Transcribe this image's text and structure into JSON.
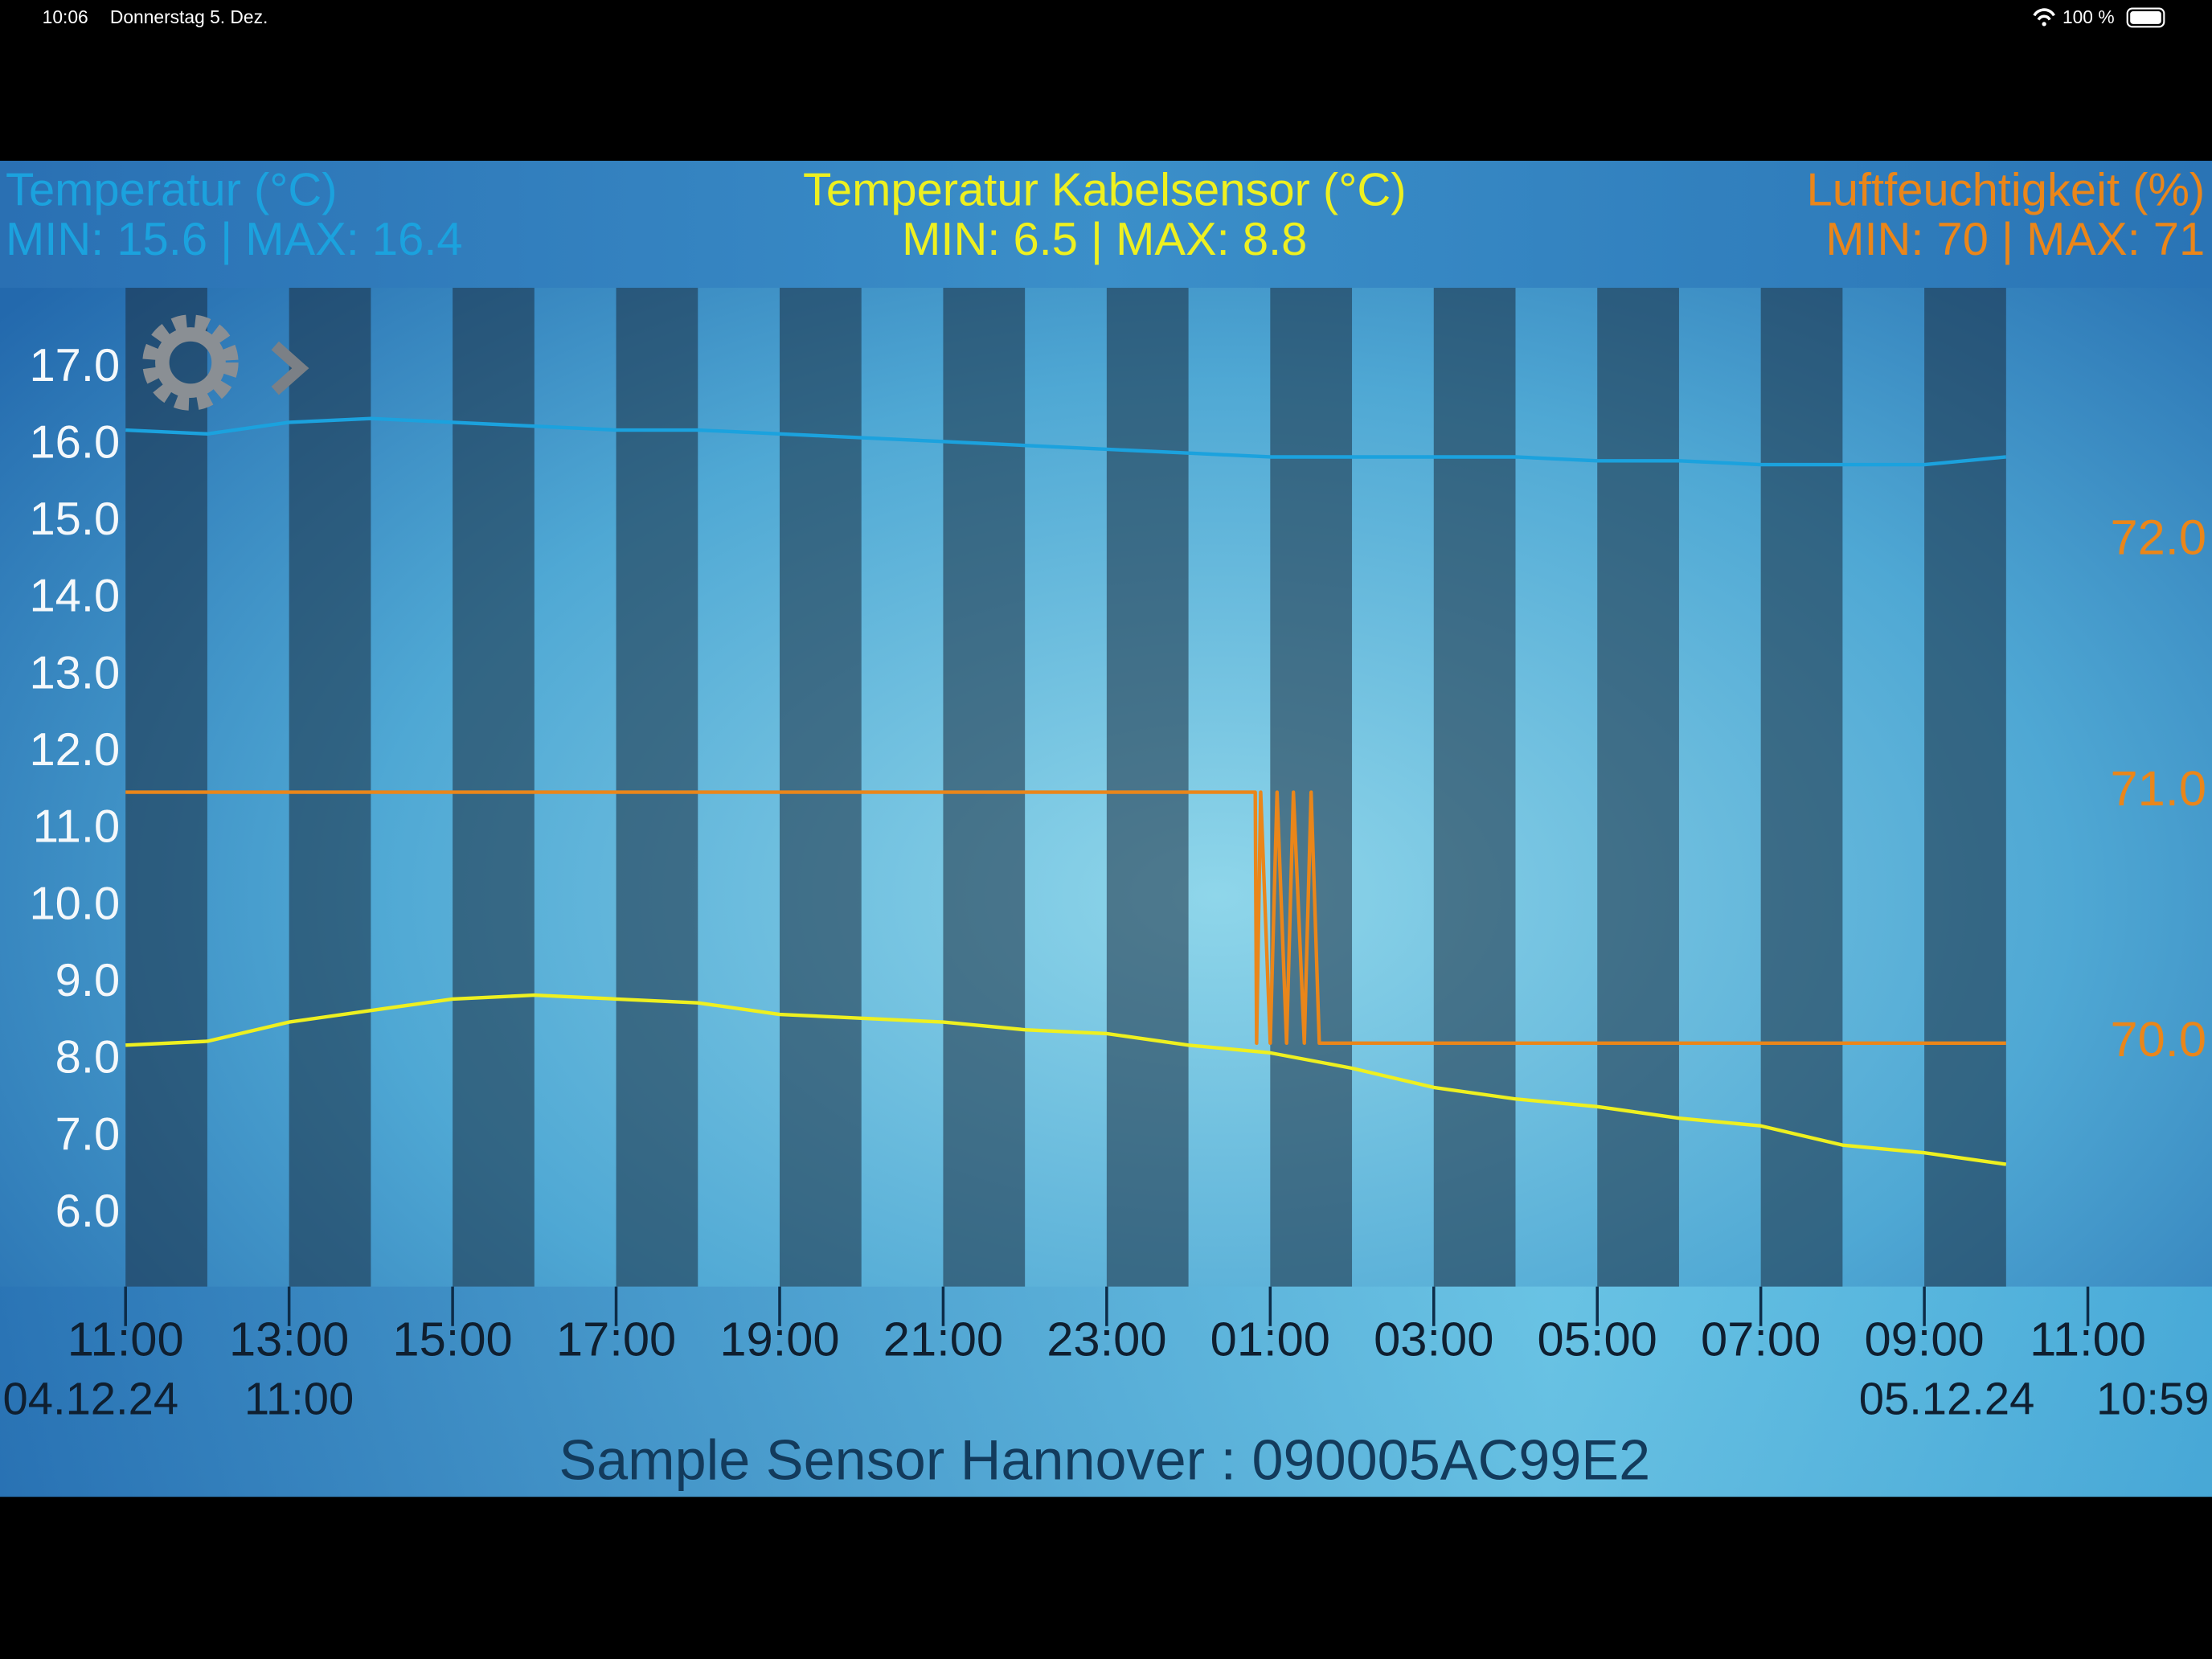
{
  "status_bar": {
    "time": "10:06",
    "date": "Donnerstag 5. Dez.",
    "battery": "100 %"
  },
  "sensor_label": "Sample Sensor Hannover : 090005AC99E2",
  "chart_data": {
    "type": "line",
    "xlim": [
      "04.12.24 11:00",
      "05.12.24 11:00"
    ],
    "xticks": [
      {
        "value": "04.12.24 11:00",
        "label": "11:00"
      },
      {
        "value": "04.12.24 13:00",
        "label": "13:00"
      },
      {
        "value": "04.12.24 15:00",
        "label": "15:00"
      },
      {
        "value": "04.12.24 17:00",
        "label": "17:00"
      },
      {
        "value": "04.12.24 19:00",
        "label": "19:00"
      },
      {
        "value": "04.12.24 21:00",
        "label": "21:00"
      },
      {
        "value": "04.12.24 23:00",
        "label": "23:00"
      },
      {
        "value": "05.12.24 01:00",
        "label": "01:00"
      },
      {
        "value": "05.12.24 03:00",
        "label": "03:00"
      },
      {
        "value": "05.12.24 05:00",
        "label": "05:00"
      },
      {
        "value": "05.12.24 07:00",
        "label": "07:00"
      },
      {
        "value": "05.12.24 09:00",
        "label": "09:00"
      },
      {
        "value": "05.12.24 11:00",
        "label": "11:00"
      }
    ],
    "range_start": {
      "date": "04.12.24",
      "time": "11:00"
    },
    "range_end": {
      "date": "05.12.24",
      "time": "10:59"
    },
    "ylim": [
      5.06,
      18.05
    ],
    "yticks": [
      {
        "value": 6,
        "label": "6.0"
      },
      {
        "value": 7,
        "label": "7.0"
      },
      {
        "value": 8,
        "label": "8.0"
      },
      {
        "value": 9,
        "label": "9.0"
      },
      {
        "value": 10,
        "label": "10.0"
      },
      {
        "value": 11,
        "label": "11.0"
      },
      {
        "value": 12,
        "label": "12.0"
      },
      {
        "value": 13,
        "label": "13.0"
      },
      {
        "value": 14,
        "label": "14.0"
      },
      {
        "value": 15,
        "label": "15.0"
      },
      {
        "value": 16,
        "label": "16.0"
      },
      {
        "value": 17,
        "label": "17.0"
      }
    ],
    "y2lim": [
      69.03,
      73.01
    ],
    "y2ticks": [
      {
        "value": 70,
        "label": "70.0"
      },
      {
        "value": 71,
        "label": "71.0"
      },
      {
        "value": 72,
        "label": "72.0"
      }
    ],
    "series": [
      {
        "name": "Temperatur (°C)",
        "min_max_label": "MIN: 15.6 | MAX: 16.4",
        "color": "#1ba2de",
        "x": [
          "04.12.24 11:00",
          "04.12.24 12:00",
          "04.12.24 13:00",
          "04.12.24 14:00",
          "04.12.24 15:00",
          "04.12.24 16:00",
          "04.12.24 17:00",
          "04.12.24 18:00",
          "04.12.24 19:00",
          "04.12.24 20:00",
          "04.12.24 21:00",
          "04.12.24 22:00",
          "04.12.24 23:00",
          "05.12.24 00:00",
          "05.12.24 01:00",
          "05.12.24 02:00",
          "05.12.24 03:00",
          "05.12.24 04:00",
          "05.12.24 05:00",
          "05.12.24 06:00",
          "05.12.24 07:00",
          "05.12.24 08:00",
          "05.12.24 09:00",
          "05.12.24 10:00"
        ],
        "values": [
          16.2,
          16.15,
          16.3,
          16.35,
          16.3,
          16.25,
          16.2,
          16.2,
          16.15,
          16.1,
          16.05,
          16.0,
          15.95,
          15.9,
          15.85,
          15.85,
          15.85,
          15.85,
          15.8,
          15.8,
          15.75,
          15.75,
          15.75,
          15.85
        ]
      },
      {
        "name": "Temperatur Kabelsensor (°C)",
        "min_max_label": "MIN: 6.5 | MAX: 8.8",
        "color": "#eef020",
        "x": [
          "04.12.24 11:00",
          "04.12.24 12:00",
          "04.12.24 13:00",
          "04.12.24 14:00",
          "04.12.24 15:00",
          "04.12.24 16:00",
          "04.12.24 17:00",
          "04.12.24 18:00",
          "04.12.24 19:00",
          "04.12.24 20:00",
          "04.12.24 21:00",
          "04.12.24 22:00",
          "04.12.24 23:00",
          "05.12.24 00:00",
          "05.12.24 01:00",
          "05.12.24 02:00",
          "05.12.24 03:00",
          "05.12.24 04:00",
          "05.12.24 05:00",
          "05.12.24 06:00",
          "05.12.24 07:00",
          "05.12.24 08:00",
          "05.12.24 09:00",
          "05.12.24 10:00"
        ],
        "values": [
          8.2,
          8.25,
          8.5,
          8.65,
          8.8,
          8.85,
          8.8,
          8.75,
          8.6,
          8.55,
          8.5,
          8.4,
          8.35,
          8.2,
          8.1,
          7.9,
          7.65,
          7.5,
          7.4,
          7.25,
          7.15,
          6.9,
          6.8,
          6.65
        ]
      },
      {
        "name": "Luftfeuchtigkeit (%)",
        "min_max_label": "MIN: 70 | MAX: 71",
        "color": "#ea861a",
        "axis": "y2",
        "x": [
          "04.12.24 11:00",
          "05.12.24 00:49",
          "05.12.24 00:50",
          "05.12.24 00:53",
          "05.12.24 01:00",
          "05.12.24 01:05",
          "05.12.24 01:12",
          "05.12.24 01:17",
          "05.12.24 01:25",
          "05.12.24 01:30",
          "05.12.24 01:36",
          "05.12.24 10:00"
        ],
        "values": [
          71,
          71,
          70,
          71,
          70,
          71,
          70,
          71,
          70,
          71,
          70,
          70
        ]
      }
    ]
  }
}
